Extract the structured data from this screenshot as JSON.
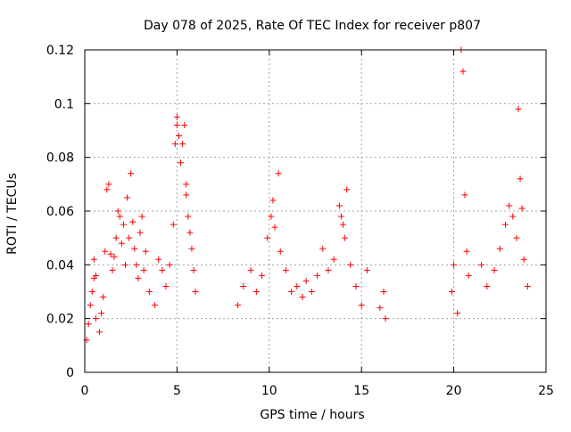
{
  "chart_data": {
    "type": "scatter",
    "title": "Day 078 of 2025, Rate Of TEC Index for receiver p807",
    "xlabel": "GPS time / hours",
    "ylabel": "ROTI / TECUs",
    "xlim": [
      0,
      25
    ],
    "ylim": [
      0,
      0.12
    ],
    "x_ticks": [
      0,
      5,
      10,
      15,
      20,
      25
    ],
    "x_tick_labels": [
      "0",
      "5",
      "10",
      "15",
      "20",
      "25"
    ],
    "y_ticks": [
      0,
      0.02,
      0.04,
      0.06,
      0.08,
      0.1,
      0.12
    ],
    "y_tick_labels": [
      "0",
      "0.02",
      "0.04",
      "0.06",
      "0.08",
      "0.1",
      "0.12"
    ],
    "grid": true,
    "marker": "+",
    "series": [
      {
        "name": "ROTI",
        "color": "#ff0000",
        "points": [
          [
            0.1,
            0.012
          ],
          [
            0.2,
            0.018
          ],
          [
            0.3,
            0.025
          ],
          [
            0.4,
            0.03
          ],
          [
            0.5,
            0.035
          ],
          [
            0.5,
            0.042
          ],
          [
            0.6,
            0.02
          ],
          [
            0.6,
            0.036
          ],
          [
            0.8,
            0.015
          ],
          [
            0.9,
            0.022
          ],
          [
            1.0,
            0.028
          ],
          [
            1.1,
            0.045
          ],
          [
            1.2,
            0.068
          ],
          [
            1.3,
            0.07
          ],
          [
            1.4,
            0.044
          ],
          [
            1.5,
            0.038
          ],
          [
            1.6,
            0.043
          ],
          [
            1.7,
            0.05
          ],
          [
            1.8,
            0.06
          ],
          [
            1.9,
            0.058
          ],
          [
            2.0,
            0.048
          ],
          [
            2.1,
            0.055
          ],
          [
            2.2,
            0.04
          ],
          [
            2.3,
            0.065
          ],
          [
            2.4,
            0.05
          ],
          [
            2.5,
            0.074
          ],
          [
            2.6,
            0.056
          ],
          [
            2.7,
            0.046
          ],
          [
            2.8,
            0.04
          ],
          [
            2.9,
            0.035
          ],
          [
            3.0,
            0.052
          ],
          [
            3.1,
            0.058
          ],
          [
            3.2,
            0.038
          ],
          [
            3.3,
            0.045
          ],
          [
            3.5,
            0.03
          ],
          [
            3.8,
            0.025
          ],
          [
            4.0,
            0.042
          ],
          [
            4.2,
            0.038
          ],
          [
            4.4,
            0.032
          ],
          [
            4.6,
            0.04
          ],
          [
            4.8,
            0.055
          ],
          [
            4.9,
            0.085
          ],
          [
            5.0,
            0.095
          ],
          [
            5.0,
            0.092
          ],
          [
            5.1,
            0.088
          ],
          [
            5.2,
            0.078
          ],
          [
            5.3,
            0.085
          ],
          [
            5.4,
            0.092
          ],
          [
            5.5,
            0.07
          ],
          [
            5.5,
            0.066
          ],
          [
            5.6,
            0.058
          ],
          [
            5.7,
            0.052
          ],
          [
            5.8,
            0.046
          ],
          [
            5.9,
            0.038
          ],
          [
            6.0,
            0.03
          ],
          [
            8.3,
            0.025
          ],
          [
            8.6,
            0.032
          ],
          [
            9.0,
            0.038
          ],
          [
            9.3,
            0.03
          ],
          [
            9.6,
            0.036
          ],
          [
            9.9,
            0.05
          ],
          [
            10.1,
            0.058
          ],
          [
            10.2,
            0.064
          ],
          [
            10.3,
            0.054
          ],
          [
            10.5,
            0.074
          ],
          [
            10.6,
            0.045
          ],
          [
            10.9,
            0.038
          ],
          [
            11.2,
            0.03
          ],
          [
            11.5,
            0.032
          ],
          [
            11.8,
            0.028
          ],
          [
            12.0,
            0.034
          ],
          [
            12.3,
            0.03
          ],
          [
            12.6,
            0.036
          ],
          [
            12.9,
            0.046
          ],
          [
            13.2,
            0.038
          ],
          [
            13.5,
            0.042
          ],
          [
            13.8,
            0.062
          ],
          [
            13.9,
            0.058
          ],
          [
            14.0,
            0.055
          ],
          [
            14.1,
            0.05
          ],
          [
            14.2,
            0.068
          ],
          [
            14.4,
            0.04
          ],
          [
            14.7,
            0.032
          ],
          [
            15.0,
            0.025
          ],
          [
            15.3,
            0.038
          ],
          [
            16.0,
            0.024
          ],
          [
            16.2,
            0.03
          ],
          [
            16.3,
            0.02
          ],
          [
            19.9,
            0.03
          ],
          [
            20.0,
            0.04
          ],
          [
            20.2,
            0.022
          ],
          [
            20.4,
            0.12
          ],
          [
            20.5,
            0.112
          ],
          [
            20.6,
            0.066
          ],
          [
            20.7,
            0.045
          ],
          [
            20.8,
            0.036
          ],
          [
            21.5,
            0.04
          ],
          [
            21.8,
            0.032
          ],
          [
            22.2,
            0.038
          ],
          [
            22.5,
            0.046
          ],
          [
            22.8,
            0.055
          ],
          [
            23.0,
            0.062
          ],
          [
            23.2,
            0.058
          ],
          [
            23.4,
            0.05
          ],
          [
            23.5,
            0.098
          ],
          [
            23.6,
            0.072
          ],
          [
            23.7,
            0.061
          ],
          [
            23.8,
            0.042
          ],
          [
            24.0,
            0.032
          ]
        ]
      }
    ]
  }
}
